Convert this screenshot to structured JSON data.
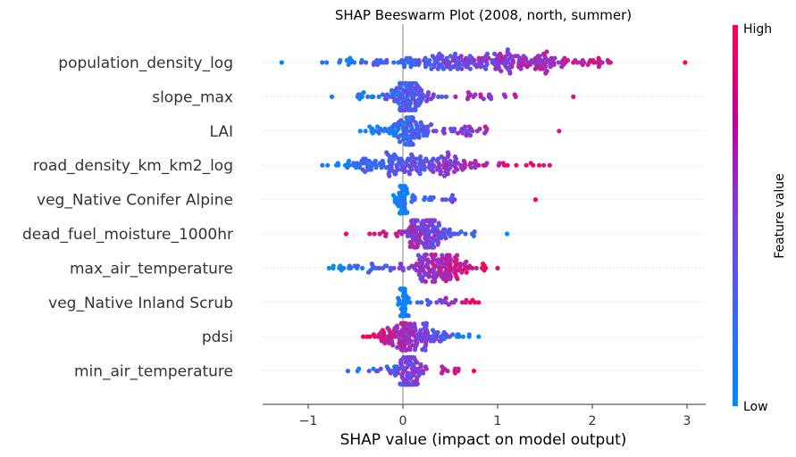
{
  "chart_data": {
    "type": "scatter",
    "subtype": "shap-beeswarm",
    "title": "SHAP Beeswarm Plot (2008, north, summer)",
    "xlabel": "SHAP value (impact on model output)",
    "xlim": [
      -1.5,
      3.2
    ],
    "xticks": [
      -1,
      0,
      1,
      2,
      3
    ],
    "xtick_labels": [
      "−1",
      "0",
      "1",
      "2",
      "3"
    ],
    "colorbar": {
      "label": "Feature value",
      "high_label": "High",
      "low_label": "Low",
      "low_color": "#008bfb",
      "high_color": "#ff0052"
    },
    "features": [
      {
        "name": "population_density_log",
        "min": -1.28,
        "max": 2.98,
        "center": 0.95,
        "spread": 0.55,
        "n": 260,
        "dir": 1,
        "core_min": -0.9,
        "core_max": 2.2
      },
      {
        "name": "slope_max",
        "min": -0.75,
        "max": 1.8,
        "center": 0.05,
        "spread": 0.12,
        "n": 140,
        "dir": 1,
        "core_min": -0.5,
        "core_max": 1.2
      },
      {
        "name": "LAI",
        "min": -0.45,
        "max": 1.65,
        "center": 0.05,
        "spread": 0.1,
        "n": 140,
        "dir": 1,
        "core_min": -0.4,
        "core_max": 0.9
      },
      {
        "name": "road_density_km_km2_log",
        "min": -0.85,
        "max": 1.55,
        "center": 0.1,
        "spread": 0.35,
        "n": 200,
        "dir": 1,
        "core_min": -0.8,
        "core_max": 1.5
      },
      {
        "name": "veg_Native Conifer Alpine",
        "min": -0.1,
        "max": 1.4,
        "center": 0.0,
        "spread": 0.02,
        "n": 90,
        "dir": 1,
        "core_min": -0.1,
        "core_max": 0.55
      },
      {
        "name": "dead_fuel_moisture_1000hr",
        "min": -0.6,
        "max": 1.1,
        "center": 0.25,
        "spread": 0.12,
        "n": 150,
        "dir": -1,
        "core_min": -0.4,
        "core_max": 0.8
      },
      {
        "name": "max_air_temperature",
        "min": -0.78,
        "max": 1.0,
        "center": 0.4,
        "spread": 0.15,
        "n": 170,
        "dir": 1,
        "core_min": -0.75,
        "core_max": 0.9
      },
      {
        "name": "veg_Native Inland Scrub",
        "min": -0.05,
        "max": 0.8,
        "center": 0.0,
        "spread": 0.02,
        "n": 90,
        "dir": 1,
        "core_min": -0.05,
        "core_max": 0.8
      },
      {
        "name": "pdsi",
        "min": -0.42,
        "max": 0.8,
        "center": 0.1,
        "spread": 0.15,
        "n": 160,
        "dir": -1,
        "core_min": -0.4,
        "core_max": 0.75
      },
      {
        "name": "min_air_temperature",
        "min": -0.58,
        "max": 0.75,
        "center": 0.05,
        "spread": 0.08,
        "n": 130,
        "dir": 1,
        "core_min": -0.55,
        "core_max": 0.6
      }
    ]
  }
}
